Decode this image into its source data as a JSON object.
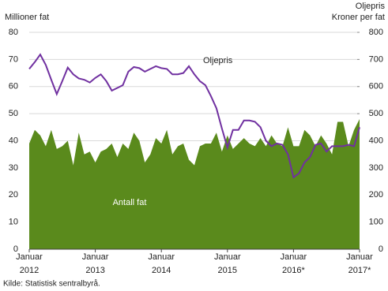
{
  "chart_data": {
    "type": "area-line",
    "y_label": "Millioner fat",
    "y2_label_lines": [
      "Oljepris",
      "Kroner per fat"
    ],
    "source": "Kilde: Statistisk sentralbyrå.",
    "categories": [
      [
        "Januar",
        "2012"
      ],
      null,
      null,
      null,
      null,
      null,
      null,
      null,
      null,
      null,
      null,
      null,
      [
        "Januar",
        "2013"
      ],
      null,
      null,
      null,
      null,
      null,
      null,
      null,
      null,
      null,
      null,
      null,
      [
        "Januar",
        "2014"
      ],
      null,
      null,
      null,
      null,
      null,
      null,
      null,
      null,
      null,
      null,
      null,
      [
        "Januar",
        "2015"
      ],
      null,
      null,
      null,
      null,
      null,
      null,
      null,
      null,
      null,
      null,
      null,
      [
        "Januar",
        "2016*"
      ],
      null,
      null,
      null,
      null,
      null,
      null,
      null,
      null,
      null,
      null,
      null,
      [
        "Januar",
        "2017*"
      ]
    ],
    "series": [
      {
        "name": "Antall fat",
        "color": "#5a8a1c",
        "axis": "y",
        "kind": "area",
        "values": [
          39,
          44,
          42,
          38,
          44,
          37,
          38,
          40,
          31,
          43,
          35,
          36,
          32,
          36,
          37,
          39,
          34,
          39,
          37,
          43,
          40,
          32,
          35,
          41,
          39,
          44,
          35,
          38,
          39,
          33,
          31,
          38,
          39,
          39,
          43,
          36,
          42,
          37,
          39,
          41,
          39,
          38,
          41,
          38,
          42,
          39,
          38,
          45,
          38,
          38,
          44,
          42,
          38,
          42,
          39,
          35,
          47,
          47,
          38,
          44,
          48
        ]
      },
      {
        "name": "Oljepris",
        "color": "#7030a0",
        "axis": "y2",
        "kind": "line",
        "values": [
          665,
          690,
          718,
          680,
          625,
          572,
          620,
          670,
          645,
          630,
          625,
          615,
          632,
          645,
          620,
          585,
          595,
          605,
          655,
          672,
          668,
          655,
          665,
          675,
          668,
          665,
          645,
          645,
          650,
          675,
          645,
          620,
          605,
          565,
          520,
          445,
          375,
          440,
          440,
          475,
          475,
          470,
          450,
          400,
          380,
          390,
          385,
          350,
          265,
          280,
          320,
          340,
          385,
          390,
          360,
          380,
          380,
          380,
          385,
          380,
          450
        ]
      }
    ],
    "ylim": [
      0,
      80
    ],
    "yticks": [
      0,
      10,
      20,
      30,
      40,
      50,
      60,
      70,
      80
    ],
    "y2lim": [
      0,
      800
    ],
    "y2ticks": [
      0,
      100,
      200,
      300,
      400,
      500,
      600,
      700,
      800
    ],
    "grid": true
  }
}
